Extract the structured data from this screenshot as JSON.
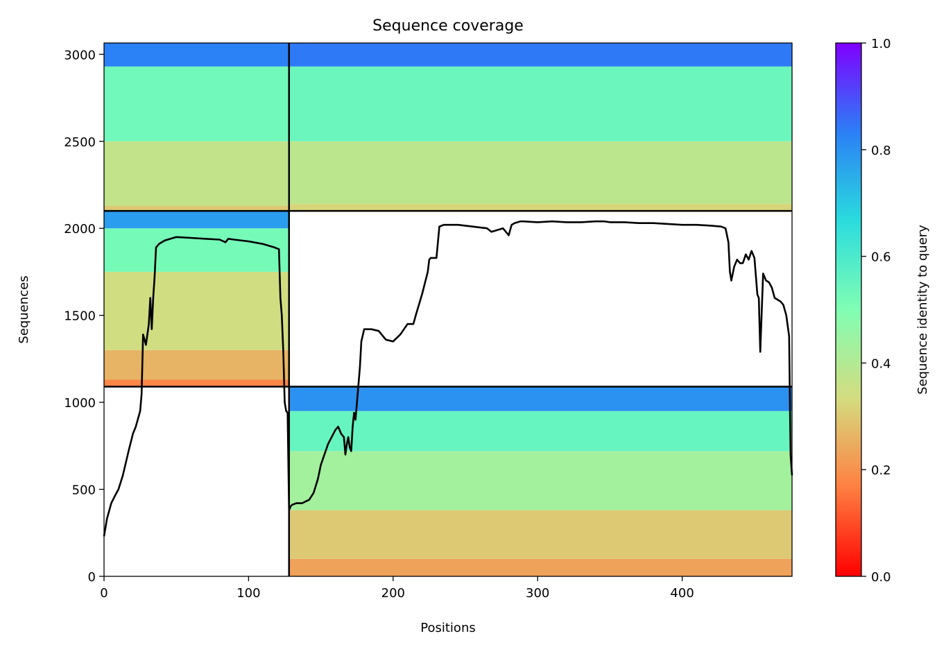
{
  "chart_data": {
    "type": "heatmap",
    "title": "Sequence coverage",
    "xlabel": "Positions",
    "ylabel": "Sequences",
    "xlim": [
      0,
      476
    ],
    "ylim": [
      0,
      3065
    ],
    "xticks": [
      0,
      100,
      200,
      300,
      400
    ],
    "yticks": [
      0,
      500,
      1000,
      1500,
      2000,
      2500,
      3000
    ],
    "grid": false,
    "colormap": "rainbow_r",
    "colorbar": {
      "label": "Sequence identity to query",
      "range": [
        0.0,
        1.0
      ],
      "ticks": [
        "0.0",
        "0.2",
        "0.4",
        "0.6",
        "0.8",
        "1.0"
      ],
      "colors": [
        "#ff0000",
        "#ff7f41",
        "#d4dc7f",
        "#80feb3",
        "#2adcdd",
        "#2b7ff6",
        "#7f00ff"
      ]
    },
    "chain_boundaries": {
      "x": [
        128
      ],
      "y": [
        1090,
        2100
      ]
    },
    "blocks": [
      {
        "x": [
          0,
          128
        ],
        "y": [
          2100,
          3065
        ],
        "bands": [
          [
            2100,
            2130,
            0.3
          ],
          [
            2130,
            2500,
            0.37
          ],
          [
            2500,
            2930,
            0.53
          ],
          [
            2930,
            3065,
            0.83
          ]
        ]
      },
      {
        "x": [
          128,
          476
        ],
        "y": [
          2100,
          3065
        ],
        "bands": [
          [
            2100,
            2140,
            0.32
          ],
          [
            2140,
            2500,
            0.38
          ],
          [
            2500,
            2930,
            0.54
          ],
          [
            2930,
            3065,
            0.84
          ]
        ]
      },
      {
        "x": [
          0,
          128
        ],
        "y": [
          1090,
          2100
        ],
        "bands": [
          [
            1090,
            1130,
            0.18
          ],
          [
            1130,
            1300,
            0.26
          ],
          [
            1300,
            1750,
            0.34
          ],
          [
            1750,
            2000,
            0.52
          ],
          [
            2000,
            2100,
            0.78
          ]
        ]
      },
      {
        "x": [
          128,
          476
        ],
        "y": [
          0,
          1090
        ],
        "bands": [
          [
            0,
            100,
            0.23
          ],
          [
            100,
            380,
            0.3
          ],
          [
            380,
            720,
            0.43
          ],
          [
            720,
            950,
            0.55
          ],
          [
            950,
            1090,
            0.8
          ]
        ]
      }
    ],
    "coverage_line": {
      "x": [
        0,
        2,
        5,
        8,
        10,
        13,
        17,
        20,
        22,
        25,
        26,
        27,
        28,
        29,
        31,
        32,
        33,
        34,
        35,
        36,
        38,
        42,
        50,
        60,
        70,
        80,
        84,
        86,
        90,
        100,
        110,
        118,
        121,
        122,
        123,
        124,
        125,
        126,
        127,
        128,
        129,
        130,
        133,
        137,
        142,
        145,
        148,
        150,
        155,
        160,
        162,
        164,
        166,
        167,
        168,
        169,
        170,
        171,
        172,
        173,
        174,
        175,
        176,
        177,
        178,
        180,
        185,
        190,
        195,
        200,
        205,
        210,
        214,
        216,
        220,
        224,
        225,
        226,
        228,
        230,
        232,
        235,
        245,
        255,
        265,
        268,
        272,
        276,
        280,
        282,
        284,
        288,
        290,
        300,
        310,
        320,
        330,
        340,
        346,
        350,
        360,
        370,
        380,
        390,
        400,
        410,
        420,
        427,
        430,
        432,
        433,
        434,
        436,
        438,
        440,
        442,
        444,
        446,
        448,
        450,
        452,
        453,
        454,
        456,
        458,
        460,
        462,
        464,
        468,
        470,
        472,
        474,
        475,
        476
      ],
      "y": [
        230,
        330,
        420,
        470,
        500,
        580,
        720,
        820,
        860,
        950,
        1050,
        1390,
        1360,
        1330,
        1450,
        1600,
        1420,
        1600,
        1720,
        1890,
        1910,
        1930,
        1950,
        1945,
        1940,
        1935,
        1920,
        1940,
        1935,
        1925,
        1910,
        1890,
        1880,
        1600,
        1500,
        1300,
        1000,
        950,
        940,
        380,
        400,
        410,
        420,
        420,
        440,
        480,
        560,
        640,
        760,
        840,
        860,
        820,
        800,
        700,
        760,
        800,
        740,
        720,
        860,
        940,
        900,
        1000,
        1100,
        1200,
        1350,
        1420,
        1420,
        1410,
        1360,
        1350,
        1390,
        1450,
        1450,
        1510,
        1620,
        1750,
        1820,
        1830,
        1830,
        1830,
        2010,
        2020,
        2020,
        2010,
        2000,
        1980,
        1990,
        2000,
        1960,
        2020,
        2030,
        2040,
        2040,
        2035,
        2040,
        2035,
        2035,
        2040,
        2040,
        2035,
        2035,
        2030,
        2030,
        2025,
        2020,
        2020,
        2015,
        2010,
        2000,
        1920,
        1750,
        1700,
        1780,
        1820,
        1800,
        1800,
        1850,
        1820,
        1870,
        1830,
        1620,
        1600,
        1290,
        1740,
        1700,
        1690,
        1660,
        1600,
        1580,
        1560,
        1500,
        1380,
        700,
        580
      ]
    }
  }
}
